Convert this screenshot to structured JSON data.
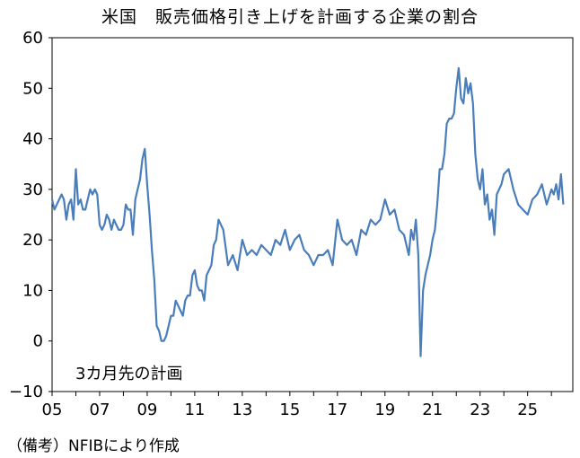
{
  "chart_data": {
    "type": "line",
    "title": "米国　販売価格引き上げを計画する企業の割合",
    "annotation": "3カ月先の計画",
    "source_note": "（備考）NFIBにより作成",
    "x_tick_labels": [
      "05",
      "07",
      "09",
      "11",
      "13",
      "15",
      "17",
      "19",
      "21",
      "23",
      "25"
    ],
    "y_tick_labels": [
      "60",
      "50",
      "40",
      "30",
      "20",
      "10",
      "0",
      "−10"
    ],
    "ylim": [
      -10,
      60
    ],
    "xlim": [
      2005.0,
      2026.9
    ],
    "grid": false,
    "line_color": "#4a7ebb",
    "series": [
      {
        "x": [
          2005.0,
          2005.1,
          2005.2,
          2005.3,
          2005.4,
          2005.5,
          2005.6,
          2005.7,
          2005.8,
          2005.9,
          2006.0,
          2006.1,
          2006.2,
          2006.3,
          2006.4,
          2006.5,
          2006.6,
          2006.7,
          2006.8,
          2006.9,
          2007.0,
          2007.1,
          2007.2,
          2007.3,
          2007.4,
          2007.5,
          2007.6,
          2007.7,
          2007.8,
          2007.9,
          2008.0,
          2008.1,
          2008.2,
          2008.3,
          2008.4,
          2008.5,
          2008.6,
          2008.7,
          2008.8,
          2008.9,
          2009.0,
          2009.1,
          2009.2,
          2009.3,
          2009.4,
          2009.5,
          2009.6,
          2009.7,
          2009.8,
          2009.9,
          2010.0,
          2010.1,
          2010.2,
          2010.3,
          2010.4,
          2010.5,
          2010.6,
          2010.7,
          2010.8,
          2010.9,
          2011.0,
          2011.1,
          2011.2,
          2011.3,
          2011.4,
          2011.5,
          2011.6,
          2011.7,
          2011.8,
          2011.9,
          2012.0,
          2012.2,
          2012.4,
          2012.6,
          2012.8,
          2013.0,
          2013.2,
          2013.4,
          2013.6,
          2013.8,
          2014.0,
          2014.2,
          2014.4,
          2014.6,
          2014.8,
          2015.0,
          2015.2,
          2015.4,
          2015.6,
          2015.8,
          2016.0,
          2016.2,
          2016.4,
          2016.6,
          2016.8,
          2017.0,
          2017.2,
          2017.4,
          2017.6,
          2017.8,
          2018.0,
          2018.2,
          2018.4,
          2018.6,
          2018.8,
          2019.0,
          2019.2,
          2019.4,
          2019.6,
          2019.8,
          2020.0,
          2020.1,
          2020.2,
          2020.3,
          2020.4,
          2020.5,
          2020.6,
          2020.7,
          2020.8,
          2020.9,
          2021.0,
          2021.1,
          2021.2,
          2021.3,
          2021.4,
          2021.5,
          2021.6,
          2021.7,
          2021.8,
          2021.9,
          2022.0,
          2022.1,
          2022.2,
          2022.3,
          2022.4,
          2022.5,
          2022.6,
          2022.7,
          2022.8,
          2022.9,
          2023.0,
          2023.1,
          2023.2,
          2023.3,
          2023.4,
          2023.5,
          2023.6,
          2023.7,
          2023.8,
          2023.9,
          2024.0,
          2024.2,
          2024.4,
          2024.6,
          2024.8,
          2025.0,
          2025.2,
          2025.4,
          2025.6,
          2025.8,
          2026.0,
          2026.1,
          2026.2,
          2026.3,
          2026.4,
          2026.5
        ],
        "values": [
          28,
          26,
          27,
          28,
          29,
          28,
          24,
          27,
          28,
          24,
          34,
          27,
          28,
          26,
          26,
          28,
          30,
          29,
          30,
          29,
          23,
          22,
          23,
          25,
          24,
          22,
          24,
          23,
          22,
          22,
          23,
          27,
          26,
          26,
          21,
          28,
          30,
          32,
          36,
          38,
          31,
          25,
          18,
          12,
          3,
          2,
          0,
          0,
          1,
          3,
          5,
          5,
          8,
          7,
          6,
          5,
          8,
          9,
          9,
          13,
          14,
          11,
          10,
          10,
          8,
          13,
          14,
          15,
          19,
          20,
          24,
          22,
          15,
          17,
          14,
          20,
          17,
          18,
          17,
          19,
          18,
          17,
          20,
          19,
          22,
          18,
          20,
          21,
          18,
          17,
          15,
          17,
          17,
          18,
          15,
          24,
          20,
          19,
          20,
          17,
          22,
          21,
          24,
          23,
          24,
          28,
          25,
          26,
          22,
          21,
          17,
          22,
          20,
          24,
          17,
          -3,
          10,
          13,
          15,
          17,
          20,
          22,
          27,
          34,
          34,
          37,
          43,
          44,
          44,
          45,
          50,
          54,
          48,
          47,
          52,
          49,
          51,
          47,
          37,
          32,
          30,
          34,
          27,
          29,
          24,
          26,
          21,
          29,
          30,
          31,
          33,
          34,
          30,
          27,
          26,
          25,
          28,
          29,
          31,
          27,
          30,
          29,
          31,
          28,
          33,
          27
        ]
      }
    ]
  }
}
